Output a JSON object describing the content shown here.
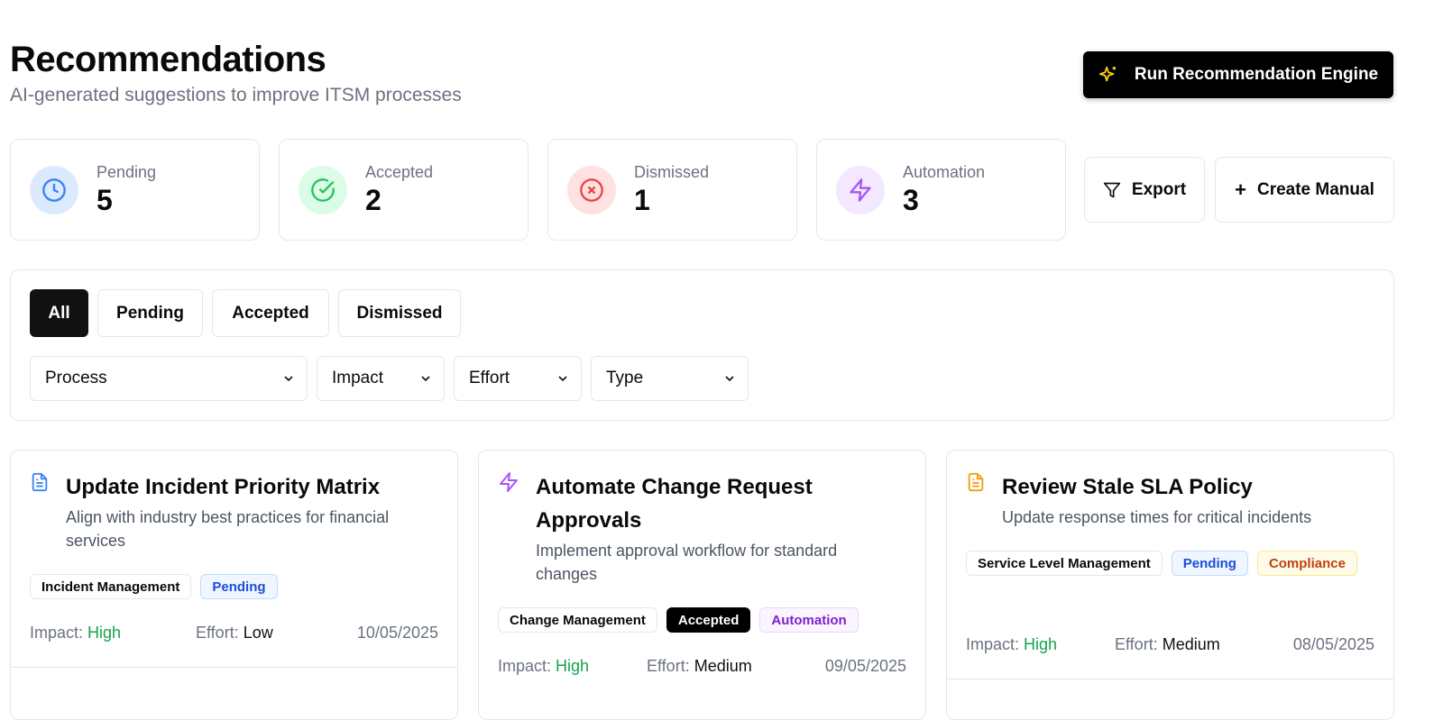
{
  "header": {
    "title": "Recommendations",
    "subtitle": "AI-generated suggestions to improve ITSM processes",
    "run_label": "Run Recommendation Engine"
  },
  "stats": [
    {
      "label": "Pending",
      "value": "5",
      "icon": "clock-icon",
      "color": "#3b82f6",
      "bg": "#dbeafe"
    },
    {
      "label": "Accepted",
      "value": "2",
      "icon": "check-circle-icon",
      "color": "#22c55e",
      "bg": "#dcfce7"
    },
    {
      "label": "Dismissed",
      "value": "1",
      "icon": "x-circle-icon",
      "color": "#ef4444",
      "bg": "#fee2e2"
    },
    {
      "label": "Automation",
      "value": "3",
      "icon": "zap-icon",
      "color": "#a855f7",
      "bg": "#f3e8ff"
    }
  ],
  "actions": {
    "export": "Export",
    "create": "Create Manual"
  },
  "tabs": [
    "All",
    "Pending",
    "Accepted",
    "Dismissed"
  ],
  "active_tab": "All",
  "filters": [
    "Process",
    "Impact",
    "Effort",
    "Type"
  ],
  "labels": {
    "impact": "Impact:",
    "effort": "Effort:"
  },
  "cards": [
    {
      "title": "Update Incident Priority Matrix",
      "desc": "Align with industry best practices for financial services",
      "icon": "file-text-icon",
      "icon_color": "#3b82f6",
      "process": "Incident Management",
      "status": "Pending",
      "type": "",
      "impact": "High",
      "effort": "Low",
      "date": "10/05/2025"
    },
    {
      "title": "Automate Change Request Approvals",
      "desc": "Implement approval workflow for standard changes",
      "icon": "zap-icon",
      "icon_color": "#a855f7",
      "process": "Change Management",
      "status": "Accepted",
      "type": "Automation",
      "impact": "High",
      "effort": "Medium",
      "date": "09/05/2025"
    },
    {
      "title": "Review Stale SLA Policy",
      "desc": "Update response times for critical incidents",
      "icon": "file-text-icon",
      "icon_color": "#f59e0b",
      "process": "Service Level Management",
      "status": "Pending",
      "type": "Compliance",
      "impact": "High",
      "effort": "Medium",
      "date": "08/05/2025"
    }
  ]
}
